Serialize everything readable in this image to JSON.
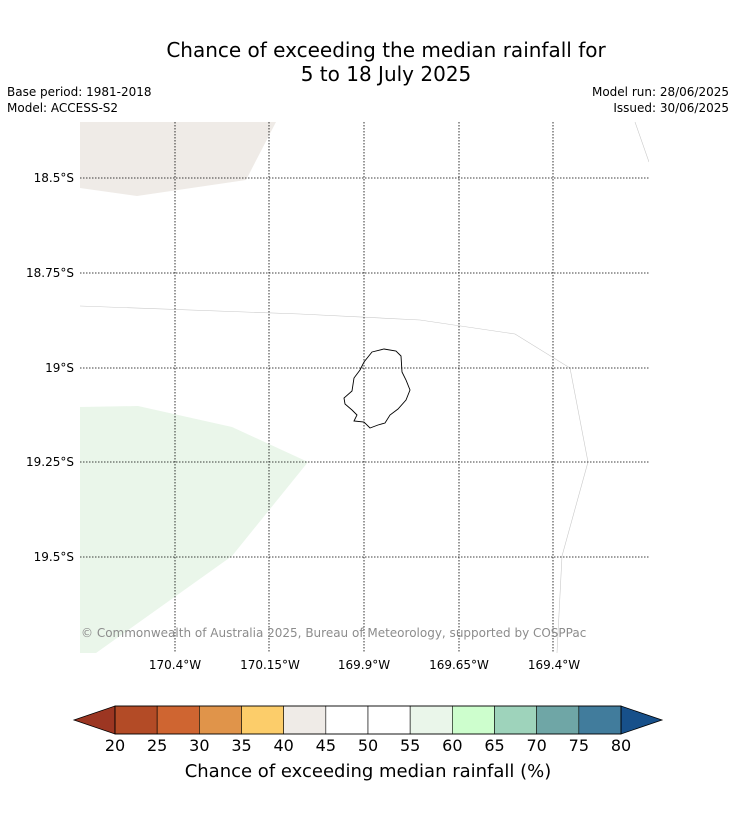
{
  "title_line1": "Chance of exceeding the median rainfall for",
  "title_line2": "5 to 18 July 2025",
  "base_period": "Base period: 1981-2018",
  "model": "Model: ACCESS-S2",
  "model_run": "Model run: 28/06/2025",
  "issued": "Issued: 30/06/2025",
  "lat_labels": [
    "18.5°S",
    "18.75°S",
    "19°S",
    "19.25°S",
    "19.5°S"
  ],
  "lon_labels": [
    "170.4°W",
    "170.15°W",
    "169.9°W",
    "169.65°W",
    "169.4°W"
  ],
  "copyright": "© Commonwealth of Australia 2025, Bureau of Meteorology, supported by COSPPac",
  "colorbar": {
    "title": "Chance of exceeding median rainfall (%)",
    "ticks": [
      "20",
      "25",
      "30",
      "35",
      "40",
      "45",
      "50",
      "55",
      "60",
      "65",
      "70",
      "75",
      "80"
    ],
    "under_color": "#9c3622",
    "over_color": "#17508a",
    "colors": [
      "#b34b26",
      "#cf6531",
      "#e0944a",
      "#fccd6a",
      "#efebe7",
      "#ffffff",
      "#ffffff",
      "#eaf6ea",
      "#cdfecd",
      "#9ed3bb",
      "#6fa6a6",
      "#417c9c"
    ]
  },
  "regions": [
    {
      "name": "40-45%",
      "color": "#efebe7"
    },
    {
      "name": "55-60%",
      "color": "#eaf6ea"
    }
  ]
}
